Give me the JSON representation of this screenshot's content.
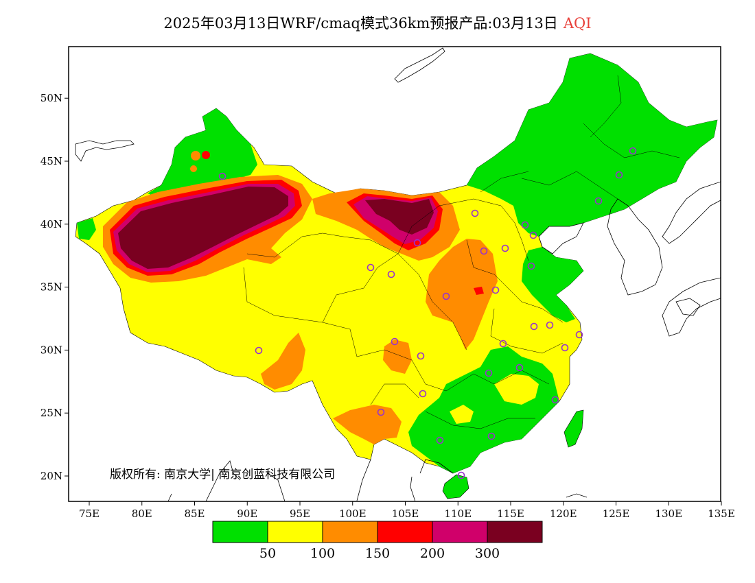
{
  "title": {
    "main": "2025年03月13日WRF/cmaq模式36km预报产品:03月13日",
    "variable": "AQI"
  },
  "copyright": "版权所有: 南京大学| 南京创蓝科技有限公司",
  "axes": {
    "lon_ticks": [
      "75E",
      "80E",
      "85E",
      "90E",
      "95E",
      "100E",
      "105E",
      "110E",
      "115E",
      "120E",
      "125E",
      "130E",
      "135E"
    ],
    "lat_ticks": [
      "20N",
      "25N",
      "30N",
      "35N",
      "40N",
      "45N",
      "50N"
    ]
  },
  "colorbar": {
    "colors": [
      "#00e000",
      "#ffff00",
      "#ff8c00",
      "#ff0000",
      "#d0006a",
      "#7a0020"
    ],
    "labels": [
      "50",
      "100",
      "150",
      "200",
      "300"
    ]
  },
  "stations_marker": "circle-icon"
}
